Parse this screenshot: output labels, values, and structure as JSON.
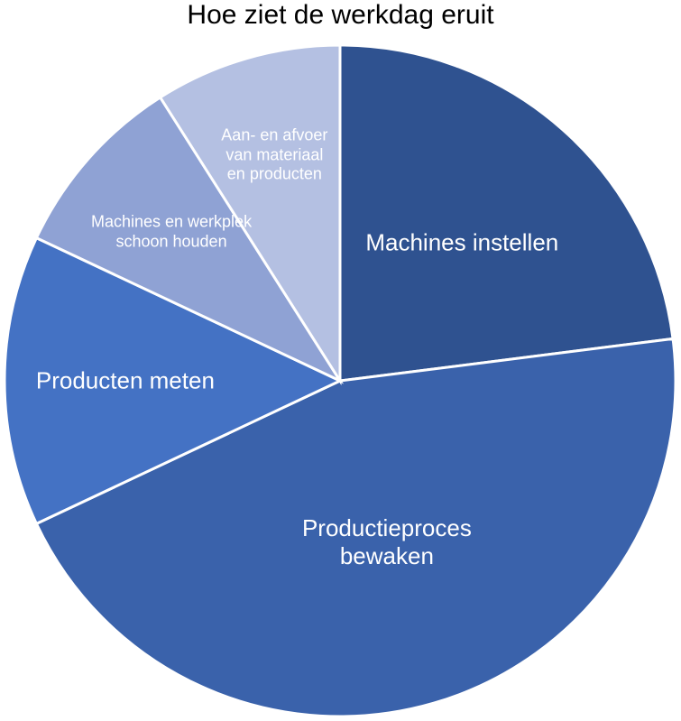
{
  "chart_data": {
    "type": "pie",
    "title": "Hoe ziet de werkdag eruit",
    "categories": [
      "Machines instellen",
      "Productieproces bewaken",
      "Producten meten",
      "Machines en werkplek schoon houden",
      "Aan- en afvoer van materiaal en producten"
    ],
    "values": [
      23,
      45,
      14,
      9,
      9
    ],
    "colors": [
      "#2f5290",
      "#3a62ab",
      "#4472c4",
      "#8fa2d4",
      "#b4c0e2"
    ]
  }
}
